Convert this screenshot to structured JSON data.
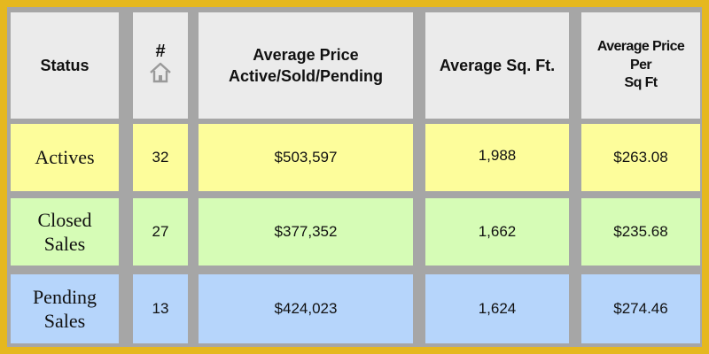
{
  "table": {
    "headers": {
      "status": "Status",
      "count": "#",
      "avg_price": [
        "Average Price",
        "Active/Sold/Pending"
      ],
      "avg_sqft": "Average Sq. Ft.",
      "avg_price_per_sqft": [
        "Average Price",
        "Per",
        "Sq Ft"
      ]
    },
    "rows": [
      {
        "status": [
          "Actives"
        ],
        "count": "32",
        "avg_price": "$503,597",
        "avg_sqft": "1,988",
        "price_per_sqft": "$263.08"
      },
      {
        "status": [
          "Closed",
          "Sales"
        ],
        "count": "27",
        "avg_price": "$377,352",
        "avg_sqft": "1,662",
        "price_per_sqft": "$235.68"
      },
      {
        "status": [
          "Pending",
          "Sales"
        ],
        "count": "13",
        "avg_price": "$424,023",
        "avg_sqft": "1,624",
        "price_per_sqft": "$274.46"
      }
    ]
  },
  "icons": {
    "count_header_icon": "house-icon"
  },
  "colors": {
    "border": "#e5b81f",
    "header_bg": "#ebebeb",
    "actives_bg": "#fdfd9b",
    "closed_bg": "#d6fcb6",
    "pending_bg": "#b6d5fb",
    "grid": "#a6a6a6"
  }
}
